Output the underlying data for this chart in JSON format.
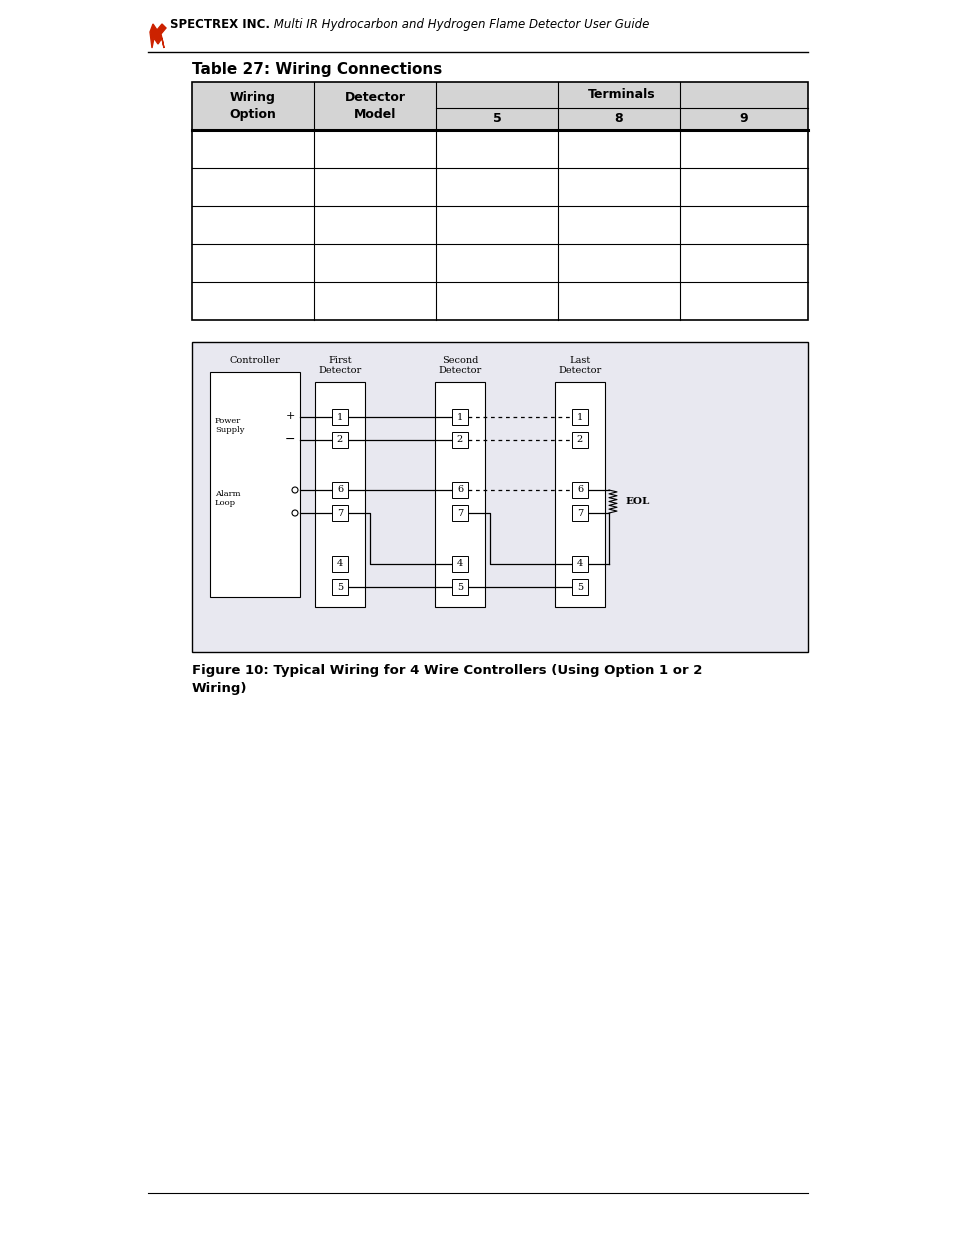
{
  "page_title": "Multi IR Hydrocarbon and Hydrogen Flame Detector User Guide",
  "table_title": "Table 27: Wiring Connections",
  "header_bg": "#d4d4d4",
  "num_data_rows": 5,
  "figure_caption": "Figure 10: Typical Wiring for 4 Wire Controllers (Using Option 1 or 2\nWiring)",
  "bg_color": "#ffffff",
  "diagram_bg": "#e8e8f0"
}
